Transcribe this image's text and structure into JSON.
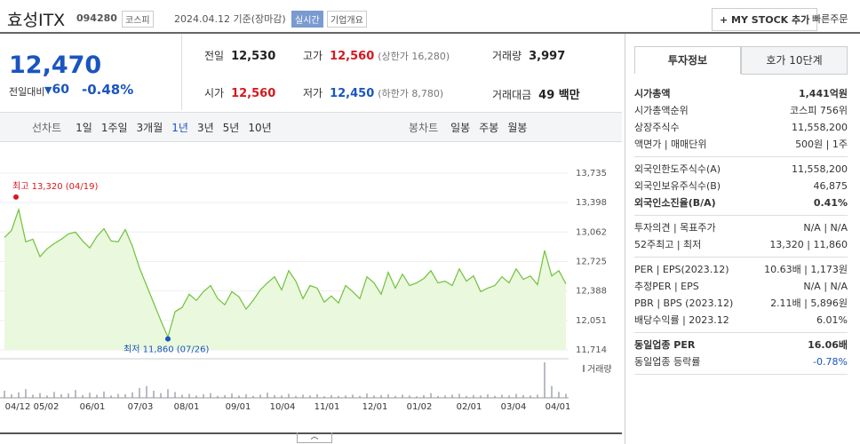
{
  "header": {
    "name": "효성ITX",
    "code": "094280",
    "market": "코스피",
    "date": "2024.04.12 기준(장마감)",
    "realtime": "실시간",
    "company": "기업개요",
    "mystock": "+ MY STOCK 추가",
    "quick_order": "빠른주문"
  },
  "price": {
    "current": "12,470",
    "change_label": "전일대비",
    "change": "60",
    "change_rate": "-0.48%"
  },
  "quote": [
    [
      {
        "label": "전일",
        "value": "12,530"
      },
      {
        "label": "고가",
        "value": "12,560",
        "note": "(상한가 16,280)"
      },
      {
        "label": "거래량",
        "value": "3,997"
      }
    ],
    [
      {
        "label": "시가",
        "value": "12,560"
      },
      {
        "label": "저가",
        "value": "12,450",
        "note": "(하한가 8,780)"
      },
      {
        "label": "거래대금",
        "value": "49 백만"
      }
    ]
  ],
  "tabs": {
    "line": "선차트",
    "line_periods": [
      "1일",
      "1주일",
      "3개월",
      "1년",
      "3년",
      "5년",
      "10년"
    ],
    "candle": "봉차트",
    "candle_periods": [
      "일봉",
      "주봉",
      "월봉"
    ]
  },
  "chart_data": {
    "type": "line",
    "color": "#6fc23b",
    "values": [
      13000,
      13080,
      13320,
      12950,
      12980,
      12780,
      12870,
      12930,
      12980,
      13040,
      13060,
      12960,
      12880,
      13010,
      13100,
      12960,
      12950,
      13090,
      12900,
      12650,
      12450,
      12250,
      12050,
      11860,
      12150,
      12200,
      12350,
      12280,
      12380,
      12450,
      12300,
      12230,
      12380,
      12320,
      12180,
      12280,
      12400,
      12480,
      12550,
      12400,
      12620,
      12500,
      12300,
      12450,
      12420,
      12260,
      12330,
      12250,
      12450,
      12380,
      12300,
      12550,
      12480,
      12350,
      12600,
      12420,
      12580,
      12450,
      12480,
      12530,
      12620,
      12480,
      12500,
      12450,
      12640,
      12500,
      12560,
      12380,
      12420,
      12450,
      12550,
      12480,
      12640,
      12520,
      12560,
      12460,
      12850,
      12560,
      12620,
      12470
    ],
    "ylim": [
      11714,
      13735
    ],
    "yticks": [
      {
        "value": 13735,
        "label": "13,735"
      },
      {
        "value": 13398,
        "label": "13,398"
      },
      {
        "value": 13062,
        "label": "13,062"
      },
      {
        "value": 12725,
        "label": "12,725"
      },
      {
        "value": 12388,
        "label": "12,388"
      },
      {
        "value": 12051,
        "label": "12,051"
      },
      {
        "value": 11714,
        "label": "11,714"
      }
    ],
    "xticks": [
      "04/12",
      "05/02",
      "06/01",
      "07/03",
      "08/01",
      "09/01",
      "10/04",
      "11/01",
      "12/01",
      "01/02",
      "02/01",
      "03/04",
      "04/01"
    ],
    "annotations": [
      {
        "text": "최고 13,320 (04/19)",
        "value": 13320
      },
      {
        "text": "최저 11,860 (07/26)",
        "value": 11860
      }
    ],
    "volume": {
      "label": "거래량",
      "values": [
        18000,
        9000,
        14000,
        22000,
        8000,
        12000,
        6000,
        15000,
        9000,
        11000,
        20000,
        7000,
        13000,
        8000,
        16000,
        6000,
        10000,
        9000,
        14000,
        25000,
        30000,
        18000,
        12000,
        22000,
        15000,
        8000,
        10000,
        6000,
        9000,
        12000,
        5000,
        7000,
        11000,
        6000,
        9000,
        5000,
        8000,
        13000,
        7000,
        6000,
        10000,
        5000,
        8000,
        6000,
        9000,
        4000,
        7000,
        5000,
        6000,
        8000,
        5000,
        11000,
        6000,
        7000,
        9000,
        5000,
        8000,
        6000,
        4000,
        7000,
        12000,
        5000,
        6000,
        8000,
        10000,
        5000,
        7000,
        6000,
        9000,
        5000,
        8000,
        6000,
        10000,
        7000,
        6000,
        8000,
        90000,
        30000,
        15000,
        10000
      ]
    }
  },
  "side": {
    "tabs": [
      "투자정보",
      "호가 10단계"
    ],
    "groups": [
      [
        [
          "시가총액",
          "1,441억원"
        ],
        [
          "시가총액순위",
          "코스피 756위"
        ],
        [
          "상장주식수",
          "11,558,200"
        ],
        [
          "액면가 | 매매단위",
          "500원 | 1주"
        ]
      ],
      [
        [
          "외국인한도주식수(A)",
          "11,558,200"
        ],
        [
          "외국인보유주식수(B)",
          "46,875"
        ],
        [
          "외국인소진율(B/A)",
          "0.41%"
        ]
      ],
      [
        [
          "투자의견 | 목표주가",
          "N/A | N/A"
        ],
        [
          "52주최고 | 최저",
          "13,320 | 11,860"
        ]
      ],
      [
        [
          "PER | EPS(2023.12)",
          "10.63배 | 1,173원"
        ],
        [
          "추정PER | EPS",
          "N/A | N/A"
        ],
        [
          "PBR | BPS (2023.12)",
          "2.11배 | 5,896원"
        ],
        [
          "배당수익률 | 2023.12",
          "6.01%"
        ]
      ],
      [
        [
          "동일업종 PER",
          "16.06배"
        ],
        [
          "동일업종 등락률",
          "-0.78%"
        ]
      ]
    ]
  }
}
